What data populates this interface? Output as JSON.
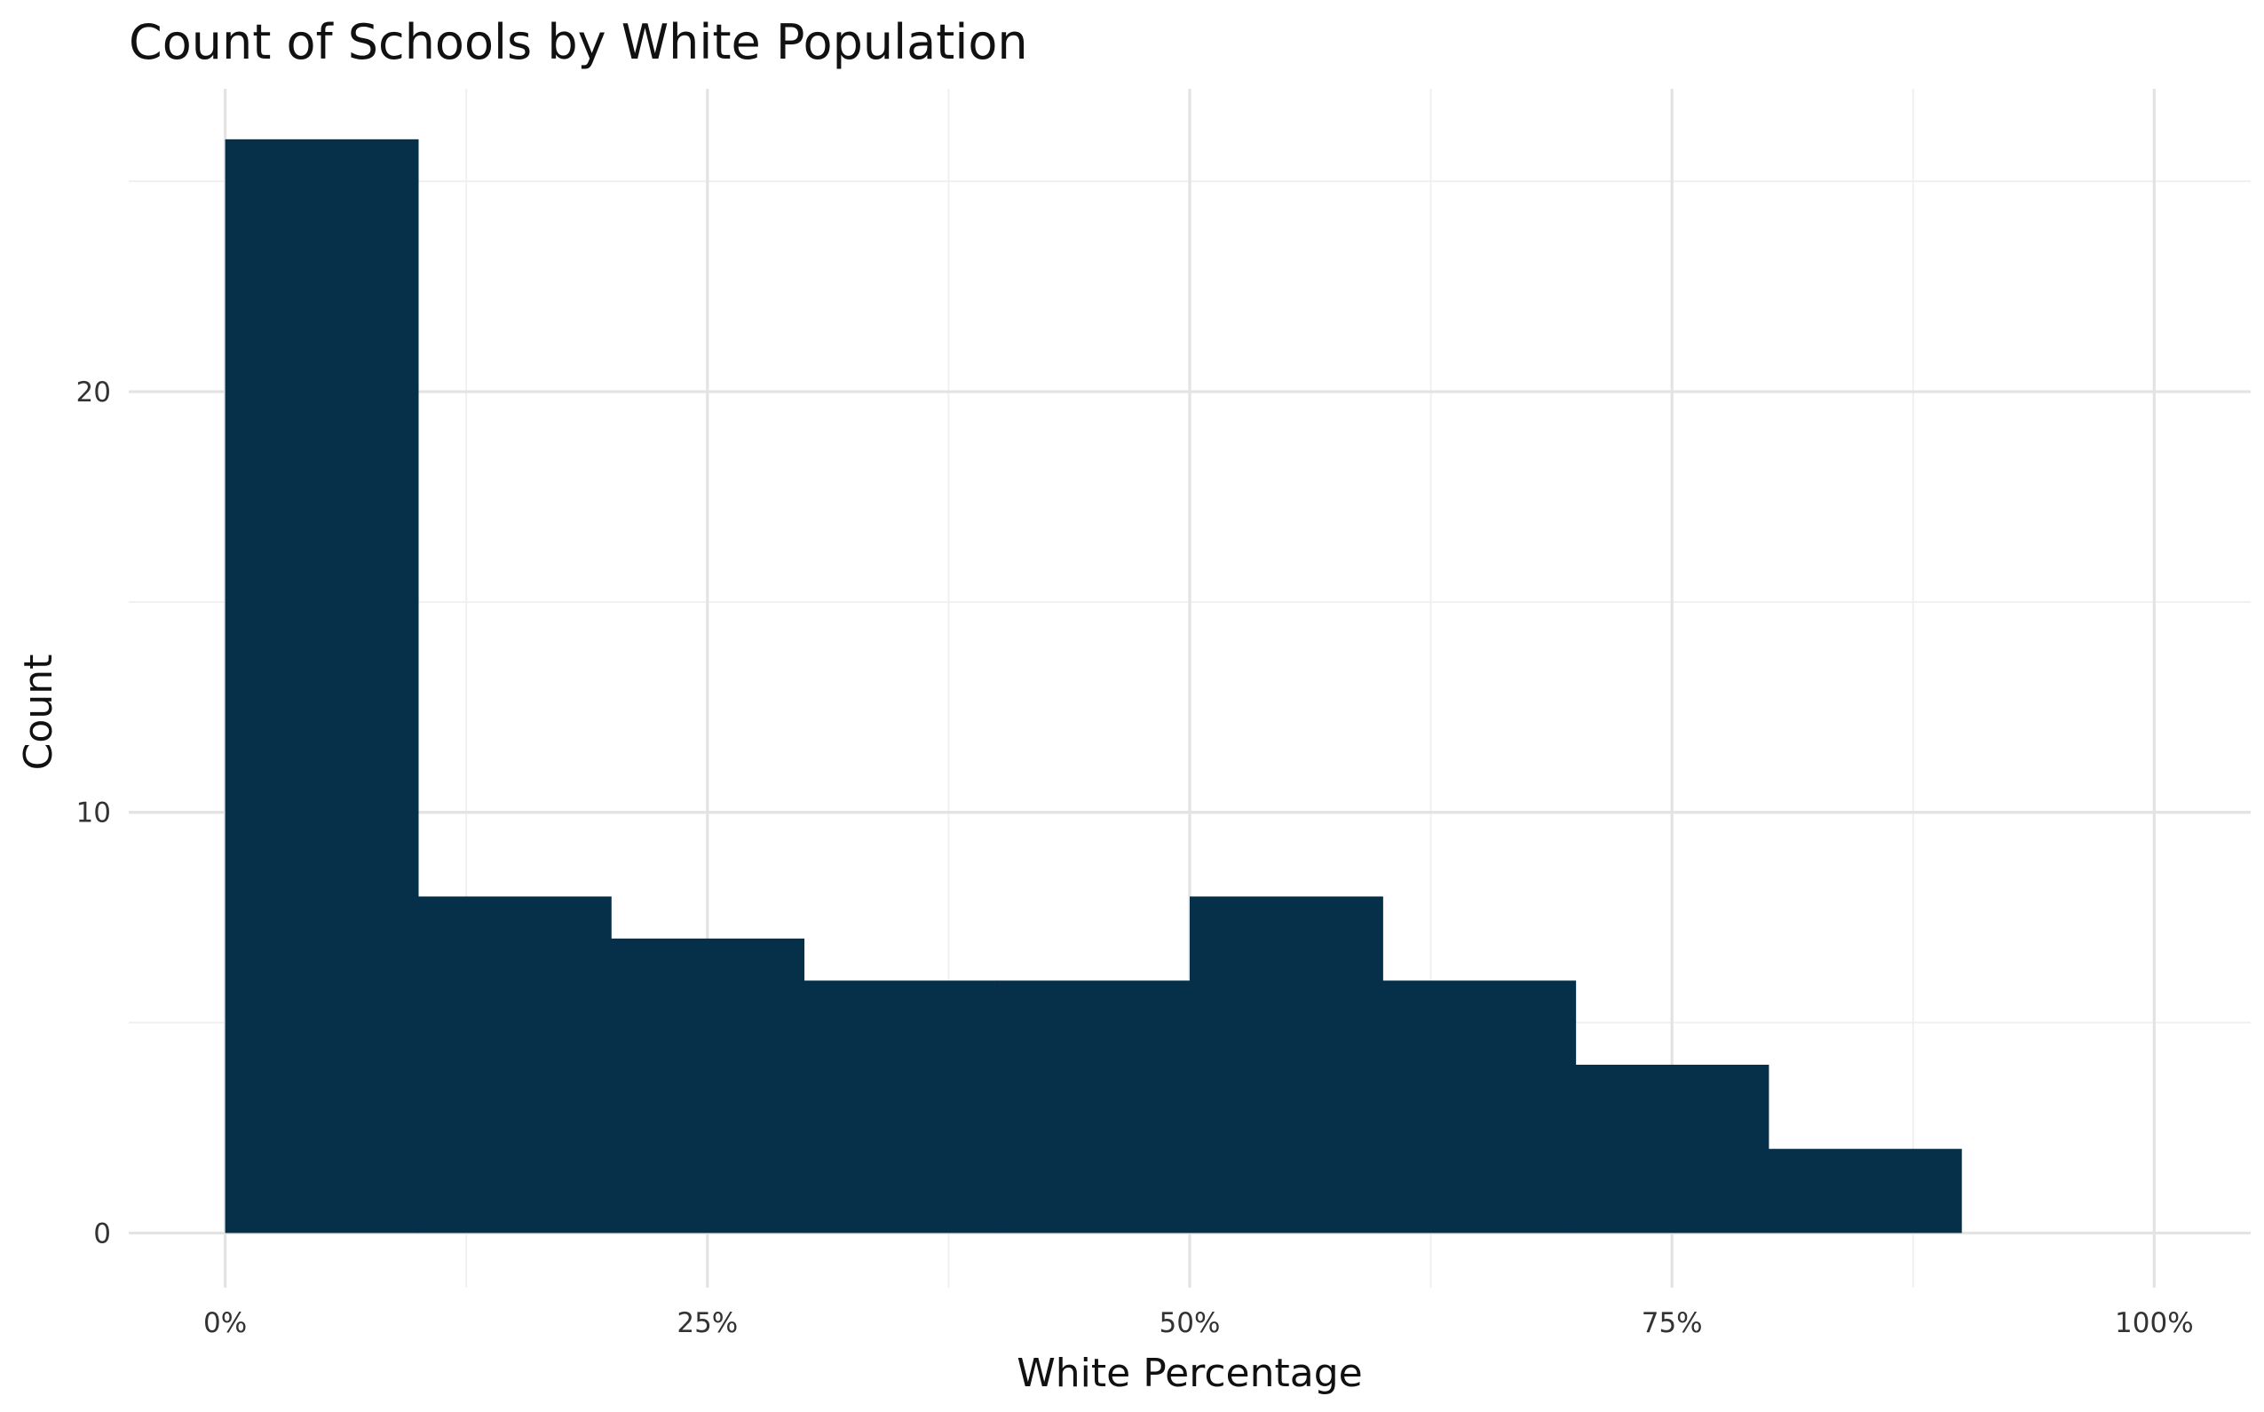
{
  "chart_data": {
    "type": "bar",
    "title": "Count of Schools by White Population",
    "xlabel": "White Percentage",
    "ylabel": "Count",
    "x_tick_labels": [
      "0%",
      "25%",
      "50%",
      "75%",
      "100%"
    ],
    "x_ticks": [
      0,
      25,
      50,
      75,
      100
    ],
    "y_tick_labels": [
      "0",
      "10",
      "20"
    ],
    "y_ticks": [
      0,
      10,
      20
    ],
    "xlim": [
      -5,
      105
    ],
    "ylim": [
      -1.3,
      27.2
    ],
    "bin_width": 10,
    "bins": [
      {
        "x0": 0,
        "x1": 10,
        "value": 26
      },
      {
        "x0": 10,
        "x1": 20,
        "value": 8
      },
      {
        "x0": 20,
        "x1": 30,
        "value": 7
      },
      {
        "x0": 30,
        "x1": 40,
        "value": 6
      },
      {
        "x0": 40,
        "x1": 50,
        "value": 6
      },
      {
        "x0": 50,
        "x1": 60,
        "value": 8
      },
      {
        "x0": 60,
        "x1": 70,
        "value": 6
      },
      {
        "x0": 70,
        "x1": 80,
        "value": 4
      },
      {
        "x0": 80,
        "x1": 90,
        "value": 2
      }
    ],
    "bar_color": "#062f4a",
    "grid": true,
    "legend": "none"
  }
}
